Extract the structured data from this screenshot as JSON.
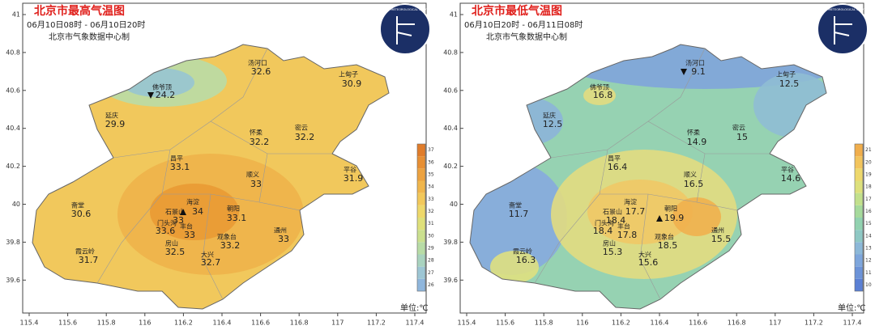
{
  "panels": [
    {
      "title": "北京市最高气温图",
      "time": "06月10日08时 - 06月10日20时",
      "source": "北京市气象数据中心制",
      "unit": "单位:℃",
      "logo": "BEIJING METEOROLOGICAL SERVICE",
      "lat_ticks": [
        41,
        40.8,
        40.6,
        40.4,
        40.2,
        40,
        39.8,
        39.6
      ],
      "lon_ticks": [
        115.4,
        115.6,
        115.8,
        116,
        116.2,
        116.4,
        116.6,
        116.8,
        117,
        117.2,
        117.4
      ],
      "colorbar": {
        "ticks": [
          26,
          27,
          28,
          29,
          30,
          31,
          32,
          33,
          34,
          35,
          36,
          37
        ],
        "colors": [
          "#8fb6dc",
          "#9dc6d4",
          "#a9d3bf",
          "#b8dca6",
          "#cbe08f",
          "#dfe07a",
          "#eed86a",
          "#f2c85a",
          "#f0b64c",
          "#eca240",
          "#e78f34",
          "#e07c2a"
        ]
      },
      "stations": [
        {
          "name": "汤河口",
          "value": 32.6
        },
        {
          "name": "上甸子",
          "value": 30.9
        },
        {
          "name": "佛爷顶",
          "value": 24.2
        },
        {
          "name": "延庆",
          "value": 29.9
        },
        {
          "name": "怀柔",
          "value": 32.2
        },
        {
          "name": "密云",
          "value": 32.2
        },
        {
          "name": "昌平",
          "value": 33.1
        },
        {
          "name": "顺义",
          "value": 33.0
        },
        {
          "name": "平谷",
          "value": 31.9
        },
        {
          "name": "斋堂",
          "value": 30.6
        },
        {
          "name": "海淀",
          "value": 34.0
        },
        {
          "name": "石景山",
          "value": 33.0
        },
        {
          "name": "门头沟",
          "value": 33.6
        },
        {
          "name": "丰台",
          "value": 33.0
        },
        {
          "name": "朝阳",
          "value": 33.1
        },
        {
          "name": "霞云岭",
          "value": 31.7
        },
        {
          "name": "房山",
          "value": 32.5
        },
        {
          "name": "大兴",
          "value": 32.7
        },
        {
          "name": "观象台",
          "value": 33.2
        },
        {
          "name": "通州",
          "value": 33.0
        }
      ]
    },
    {
      "title": "北京市最低气温图",
      "time": "06月10日20时 - 06月11日08时",
      "source": "北京市气象数据中心制",
      "unit": "单位:℃",
      "logo": "BEIJING METEOROLOGICAL SERVICE",
      "lat_ticks": [
        41,
        40.8,
        40.6,
        40.4,
        40.2,
        40,
        39.8,
        39.6
      ],
      "lon_ticks": [
        115.4,
        115.6,
        115.8,
        116,
        116.2,
        116.4,
        116.6,
        116.8,
        117,
        117.2,
        117.4
      ],
      "colorbar": {
        "ticks": [
          10,
          11,
          12,
          13,
          14,
          15,
          16,
          17,
          18,
          19,
          20,
          21
        ],
        "colors": [
          "#5b80d4",
          "#6c93d8",
          "#7ea6dc",
          "#8cb8d8",
          "#8ec8c4",
          "#92d2b0",
          "#a6da9c",
          "#c2e08c",
          "#dde07c",
          "#eed86c",
          "#f2c45c",
          "#f0ae4c"
        ]
      },
      "stations": [
        {
          "name": "汤河口",
          "value": 9.1
        },
        {
          "name": "上甸子",
          "value": 12.5
        },
        {
          "name": "佛爷顶",
          "value": 16.8
        },
        {
          "name": "延庆",
          "value": 12.5
        },
        {
          "name": "怀柔",
          "value": 14.9
        },
        {
          "name": "密云",
          "value": 15.0
        },
        {
          "name": "昌平",
          "value": 16.4
        },
        {
          "name": "顺义",
          "value": 16.5
        },
        {
          "name": "平谷",
          "value": 14.6
        },
        {
          "name": "斋堂",
          "value": 11.7
        },
        {
          "name": "海淀",
          "value": 17.7
        },
        {
          "name": "石景山",
          "value": 18.4
        },
        {
          "name": "门头沟",
          "value": 18.4
        },
        {
          "name": "丰台",
          "value": 17.8
        },
        {
          "name": "朝阳",
          "value": 19.9
        },
        {
          "name": "霞云岭",
          "value": 16.3
        },
        {
          "name": "房山",
          "value": 15.3
        },
        {
          "name": "大兴",
          "value": 15.6
        },
        {
          "name": "观象台",
          "value": 18.5
        },
        {
          "name": "通州",
          "value": 15.5
        }
      ]
    }
  ]
}
